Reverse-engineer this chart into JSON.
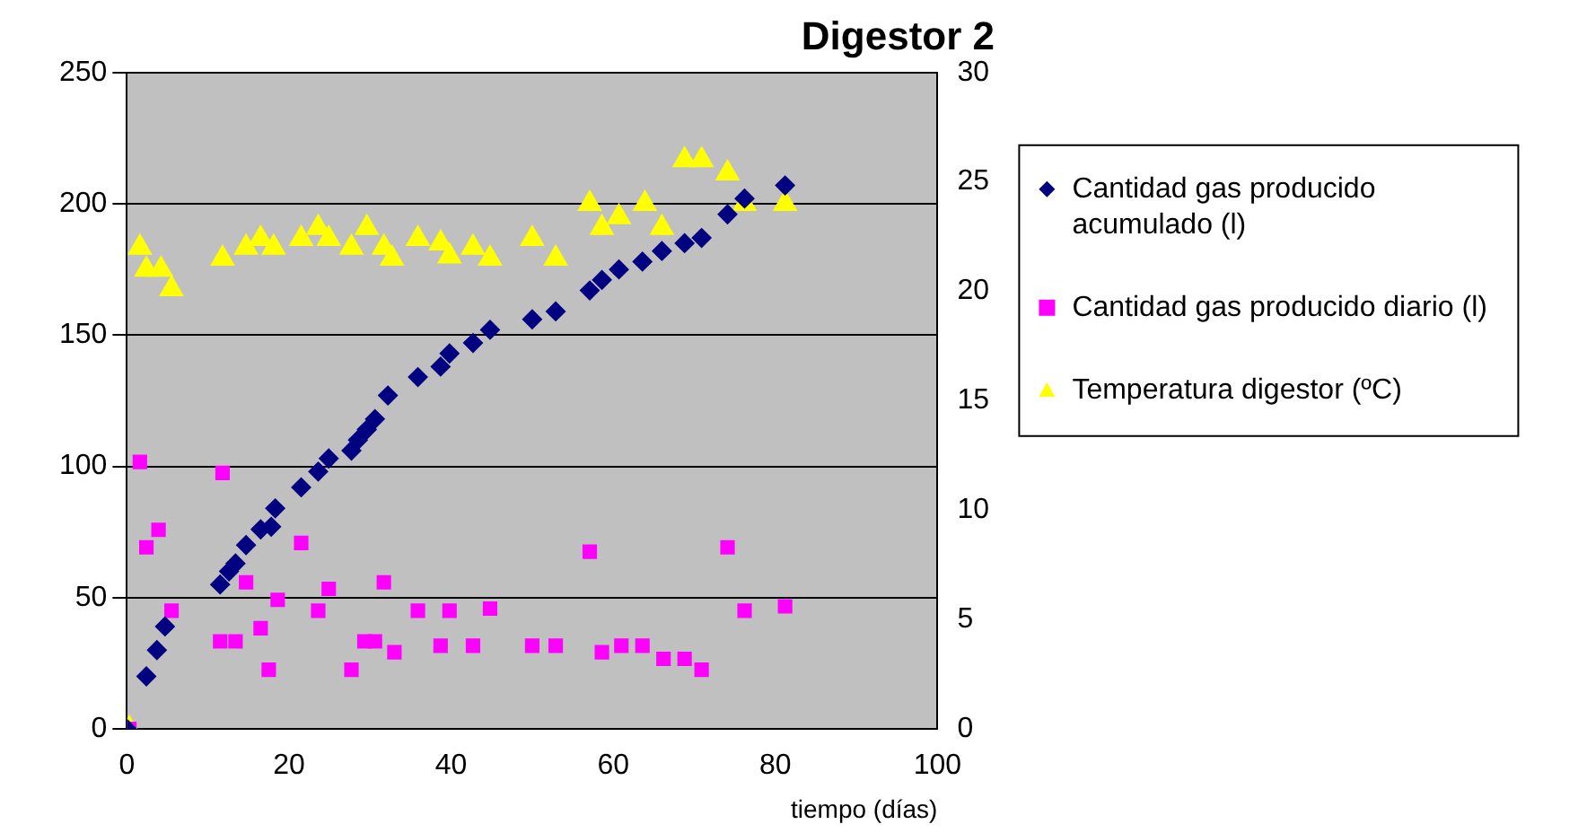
{
  "chart_data": {
    "type": "scatter",
    "title": "Digestor 2",
    "xlabel": "tiempo (días)",
    "xlim": [
      0,
      100
    ],
    "xticks": [
      0,
      20,
      40,
      60,
      80,
      100
    ],
    "ylim": [
      0,
      250
    ],
    "yticks": [
      0,
      50,
      100,
      150,
      200,
      250
    ],
    "y2lim": [
      0,
      30
    ],
    "y2ticks": [
      0,
      5,
      10,
      15,
      20,
      25,
      30
    ],
    "grid": "y",
    "legend": "right",
    "series": [
      {
        "name": "Cantidad gas producido acumulado (l)",
        "color": "#000080",
        "marker": "diamond",
        "x": [
          0,
          2.4,
          3.7,
          4.7,
          11.5,
          12.6,
          13.4,
          14.7,
          16.5,
          17.8,
          18.3,
          21.5,
          23.6,
          24.9,
          27.7,
          28.5,
          29.6,
          30.6,
          32.2,
          35.9,
          38.7,
          39.8,
          42.7,
          44.8,
          50,
          52.9,
          57.1,
          58.6,
          60.7,
          63.6,
          66,
          68.8,
          70.9,
          74.1,
          76.2,
          81.2
        ],
        "values": [
          0,
          20,
          30,
          39,
          55,
          60,
          63,
          70,
          76,
          77,
          84,
          92,
          98,
          103,
          106,
          110,
          114,
          118,
          127,
          134,
          138,
          143,
          147,
          152,
          156,
          159,
          167,
          171,
          175,
          178,
          182,
          185,
          187,
          196,
          202,
          207
        ]
      },
      {
        "name": "Cantidad gas producido diario (l)",
        "color": "#ff00ff",
        "marker": "square",
        "axis": "y2",
        "x": [
          0.3,
          1.6,
          2.4,
          3.9,
          5.5,
          11.8,
          11.5,
          13.4,
          14.7,
          16.5,
          17.5,
          18.6,
          21.5,
          23.6,
          24.9,
          27.7,
          29.3,
          30.6,
          31.7,
          33,
          35.9,
          38.7,
          39.8,
          42.7,
          44.8,
          50,
          52.9,
          57.1,
          58.6,
          61,
          63.6,
          66.2,
          68.8,
          70.9,
          74.1,
          76.2,
          81.2
        ],
        "values": [
          0,
          12.2,
          8.3,
          9.1,
          5.4,
          11.7,
          4,
          4,
          6.7,
          4.6,
          2.7,
          5.9,
          8.5,
          5.4,
          6.4,
          2.7,
          4,
          4,
          6.7,
          3.5,
          5.4,
          3.8,
          5.4,
          3.8,
          5.5,
          3.8,
          3.8,
          8.1,
          3.5,
          3.8,
          3.8,
          3.2,
          3.2,
          2.7,
          8.3,
          5.4,
          5.6
        ]
      },
      {
        "name": "Temperatura digestor (ºC)",
        "color": "#ffff00",
        "marker": "triangle",
        "axis": "y2",
        "x": [
          0.3,
          1.6,
          2.4,
          4.2,
          5.5,
          11.8,
          14.7,
          16.5,
          18.1,
          21.5,
          23.6,
          24.9,
          27.7,
          29.6,
          31.7,
          32.7,
          35.9,
          38.7,
          39.8,
          42.7,
          44.8,
          50,
          52.9,
          57.1,
          58.6,
          60.7,
          63.9,
          66,
          68.8,
          70.9,
          74.1,
          76.2,
          81.2
        ],
        "values": [
          0,
          22,
          21,
          21,
          20.1,
          21.5,
          22,
          22.4,
          22,
          22.4,
          22.9,
          22.4,
          22,
          22.9,
          22,
          21.5,
          22.4,
          22.2,
          21.6,
          22,
          21.5,
          22.4,
          21.5,
          24,
          22.9,
          23.4,
          24,
          22.9,
          26,
          26,
          25.4,
          24,
          24
        ]
      }
    ]
  }
}
